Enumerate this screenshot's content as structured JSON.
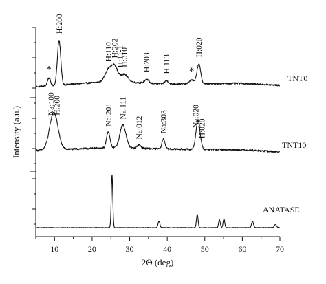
{
  "chart_data": {
    "type": "line",
    "xlabel": "2Θ (deg)",
    "ylabel": "Intensity (a.u.)",
    "xlim": [
      5,
      70
    ],
    "x_ticks": [
      "10",
      "20",
      "30",
      "40",
      "50",
      "60",
      "70"
    ],
    "y_tick_labels": "none",
    "grid": false,
    "series": [
      {
        "name": "TNT0",
        "baseline": 0.0,
        "noise": 0.025,
        "drift": [
          [
            5,
            0.0
          ],
          [
            25,
            0.08
          ],
          [
            40,
            0.04
          ],
          [
            60,
            0.05
          ],
          [
            70,
            0.02
          ]
        ],
        "peaks": [
          {
            "x": 8.5,
            "h": 0.12,
            "w": 0.4
          },
          {
            "x": 11.2,
            "h": 0.68,
            "w": 0.45
          },
          {
            "x": 24.3,
            "h": 0.18,
            "w": 0.9
          },
          {
            "x": 26.0,
            "h": 0.22,
            "w": 0.8
          },
          {
            "x": 28.5,
            "h": 0.12,
            "w": 1.0
          },
          {
            "x": 34.5,
            "h": 0.06,
            "w": 0.5
          },
          {
            "x": 39.8,
            "h": 0.05,
            "w": 0.5
          },
          {
            "x": 46.5,
            "h": 0.06,
            "w": 0.6
          },
          {
            "x": 48.4,
            "h": 0.3,
            "w": 0.5
          }
        ]
      },
      {
        "name": "TNT10",
        "baseline": 0.0,
        "noise": 0.025,
        "drift": [
          [
            5,
            0.02
          ],
          [
            25,
            0.06
          ],
          [
            40,
            0.04
          ],
          [
            60,
            0.03
          ],
          [
            70,
            0.0
          ]
        ],
        "peaks": [
          {
            "x": 9.8,
            "h": 0.52,
            "w": 1.1
          },
          {
            "x": 24.3,
            "h": 0.22,
            "w": 0.45
          },
          {
            "x": 28.2,
            "h": 0.32,
            "w": 0.8
          },
          {
            "x": 32.5,
            "h": 0.05,
            "w": 0.5
          },
          {
            "x": 39.0,
            "h": 0.14,
            "w": 0.4
          },
          {
            "x": 48.2,
            "h": 0.4,
            "w": 0.55
          }
        ]
      },
      {
        "name": "ANATASE",
        "baseline": 0.0,
        "noise": 0.01,
        "drift": [
          [
            5,
            0.0
          ],
          [
            70,
            0.0
          ]
        ],
        "peaks": [
          {
            "x": 25.3,
            "h": 1.0,
            "w": 0.2
          },
          {
            "x": 37.8,
            "h": 0.12,
            "w": 0.25
          },
          {
            "x": 48.0,
            "h": 0.25,
            "w": 0.22
          },
          {
            "x": 53.9,
            "h": 0.15,
            "w": 0.22
          },
          {
            "x": 55.1,
            "h": 0.16,
            "w": 0.22
          },
          {
            "x": 62.7,
            "h": 0.12,
            "w": 0.25
          },
          {
            "x": 68.8,
            "h": 0.06,
            "w": 0.3
          }
        ]
      }
    ],
    "series_labels": {
      "TNT0": "TNT0",
      "TNT10": "TNT10",
      "ANATASE": "ANATASE"
    },
    "annotations": [
      {
        "text": "*",
        "x": 8.5,
        "series": "TNT0"
      },
      {
        "text": "H:200",
        "x": 11.2,
        "series": "TNT0"
      },
      {
        "text": "H:110",
        "x": 24.3,
        "series": "TNT0"
      },
      {
        "text": "H:202",
        "x": 26.0,
        "series": "TNT0"
      },
      {
        "text": "H:11-1",
        "x": 27.4,
        "series": "TNT0"
      },
      {
        "text": "H:310",
        "x": 28.5,
        "series": "TNT0"
      },
      {
        "text": "H:203",
        "x": 34.5,
        "series": "TNT0"
      },
      {
        "text": "H:113",
        "x": 39.8,
        "series": "TNT0"
      },
      {
        "text": "*",
        "x": 46.5,
        "series": "TNT0"
      },
      {
        "text": "H:020",
        "x": 48.4,
        "series": "TNT0"
      },
      {
        "text": "Na:100",
        "x": 9.0,
        "series": "TNT10"
      },
      {
        "text": "H:200",
        "x": 10.6,
        "series": "TNT10"
      },
      {
        "text": "Na:201",
        "x": 24.3,
        "series": "TNT10"
      },
      {
        "text": "Na:111",
        "x": 28.2,
        "series": "TNT10"
      },
      {
        "text": "Na:012",
        "x": 32.5,
        "series": "TNT10"
      },
      {
        "text": "Na:303",
        "x": 39.0,
        "series": "TNT10"
      },
      {
        "text": "Na:020",
        "x": 47.6,
        "series": "TNT10"
      },
      {
        "text": "H:020",
        "x": 49.2,
        "series": "TNT10"
      }
    ]
  }
}
